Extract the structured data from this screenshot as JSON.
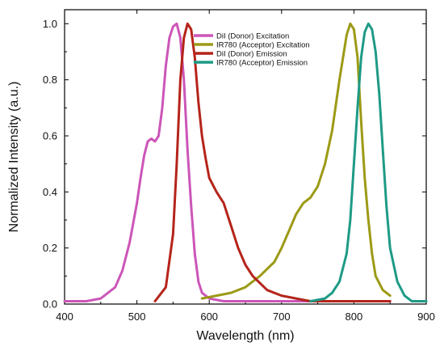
{
  "chart_data": {
    "type": "line",
    "xlabel": "Wavelength (nm)",
    "ylabel": "Normalized Intensity (a.u.)",
    "xlim": [
      400,
      900
    ],
    "ylim": [
      0,
      1.05
    ],
    "x_ticks": [
      400,
      500,
      600,
      700,
      800,
      900
    ],
    "y_ticks": [
      0.0,
      0.2,
      0.4,
      0.6,
      0.8,
      1.0
    ],
    "x_tick_labels": [
      "400",
      "500",
      "600",
      "700",
      "800",
      "900"
    ],
    "y_tick_labels": [
      "0.0",
      "0.2",
      "0.4",
      "0.6",
      "0.8",
      "1.0"
    ],
    "grid": false,
    "legend_position": "top-center",
    "series": [
      {
        "name": "DiI (Donor) Excitation",
        "color": "#cc55b8",
        "x": [
          400,
          430,
          450,
          470,
          480,
          490,
          500,
          505,
          510,
          515,
          520,
          525,
          530,
          535,
          540,
          545,
          550,
          555,
          560,
          565,
          570,
          575,
          580,
          585,
          590,
          600,
          620,
          700,
          850
        ],
        "y": [
          0.01,
          0.01,
          0.02,
          0.06,
          0.12,
          0.22,
          0.36,
          0.45,
          0.53,
          0.58,
          0.59,
          0.58,
          0.6,
          0.7,
          0.85,
          0.95,
          0.99,
          1.0,
          0.95,
          0.8,
          0.55,
          0.35,
          0.18,
          0.08,
          0.04,
          0.02,
          0.01,
          0.01,
          0.01
        ]
      },
      {
        "name": "IR780 (Acceptor) Excitation",
        "color": "#9c9a15",
        "x": [
          590,
          610,
          630,
          650,
          670,
          690,
          700,
          710,
          720,
          730,
          740,
          750,
          760,
          770,
          780,
          790,
          795,
          800,
          805,
          810,
          815,
          820,
          825,
          830,
          840,
          850
        ],
        "y": [
          0.02,
          0.03,
          0.04,
          0.06,
          0.1,
          0.15,
          0.2,
          0.26,
          0.32,
          0.36,
          0.38,
          0.42,
          0.5,
          0.62,
          0.8,
          0.96,
          1.0,
          0.98,
          0.88,
          0.65,
          0.45,
          0.3,
          0.18,
          0.1,
          0.05,
          0.03
        ]
      },
      {
        "name": "DiI (Donor) Emission",
        "color": "#b5241a",
        "x": [
          525,
          540,
          550,
          555,
          560,
          565,
          570,
          575,
          580,
          585,
          590,
          595,
          600,
          610,
          620,
          630,
          640,
          650,
          660,
          680,
          700,
          720,
          740,
          760,
          800,
          850
        ],
        "y": [
          0.01,
          0.06,
          0.25,
          0.5,
          0.8,
          0.95,
          1.0,
          0.98,
          0.88,
          0.72,
          0.6,
          0.52,
          0.45,
          0.4,
          0.36,
          0.28,
          0.2,
          0.14,
          0.1,
          0.05,
          0.03,
          0.02,
          0.01,
          0.01,
          0.01,
          0.01
        ]
      },
      {
        "name": "IR780 (Acceptor) Emission",
        "color": "#1e9a86",
        "x": [
          740,
          760,
          770,
          780,
          790,
          795,
          800,
          805,
          810,
          815,
          820,
          825,
          830,
          835,
          840,
          845,
          850,
          860,
          870,
          880,
          890,
          900
        ],
        "y": [
          0.01,
          0.02,
          0.04,
          0.08,
          0.18,
          0.3,
          0.5,
          0.7,
          0.88,
          0.97,
          1.0,
          0.98,
          0.9,
          0.75,
          0.55,
          0.35,
          0.2,
          0.08,
          0.03,
          0.01,
          0.01,
          0.01
        ]
      }
    ]
  }
}
